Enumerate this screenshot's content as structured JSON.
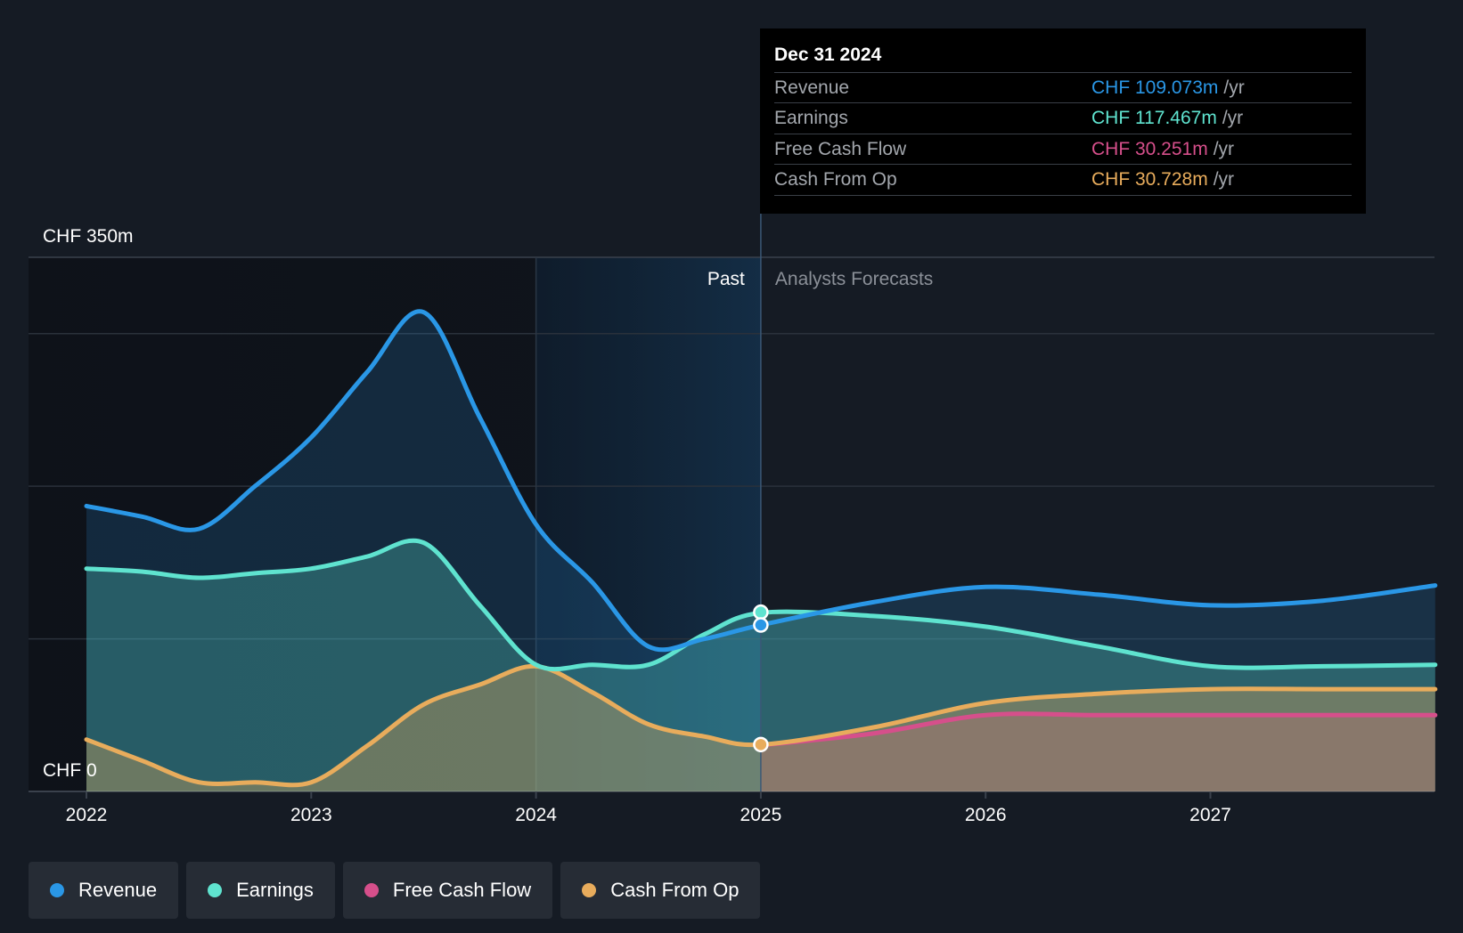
{
  "colors": {
    "revenue": "#2a97e6",
    "earnings": "#5fe3cf",
    "free_cash_flow": "#d64f8b",
    "cash_from_op": "#e8ac5c",
    "background": "#151b24"
  },
  "tooltip": {
    "date": "Dec 31 2024",
    "rows": [
      {
        "label": "Revenue",
        "value": "CHF 109.073m",
        "unit": "/yr"
      },
      {
        "label": "Earnings",
        "value": "CHF 117.467m",
        "unit": "/yr"
      },
      {
        "label": "Free Cash Flow",
        "value": "CHF 30.251m",
        "unit": "/yr"
      },
      {
        "label": "Cash From Op",
        "value": "CHF 30.728m",
        "unit": "/yr"
      }
    ]
  },
  "legend": {
    "items": [
      {
        "label": "Revenue",
        "icon": "dot-icon"
      },
      {
        "label": "Earnings",
        "icon": "dot-icon"
      },
      {
        "label": "Free Cash Flow",
        "icon": "dot-icon"
      },
      {
        "label": "Cash From Op",
        "icon": "dot-icon"
      }
    ]
  },
  "chart_data": {
    "type": "line",
    "title": "",
    "ylabel_top": "CHF 350m",
    "ylabel_bottom": "CHF 0",
    "ylim": [
      0,
      350
    ],
    "xlim": [
      2022,
      2028
    ],
    "x_ticks": [
      "2022",
      "2023",
      "2024",
      "2025",
      "2026",
      "2027"
    ],
    "x_tick_values": [
      2022,
      2023,
      2024,
      2025,
      2026,
      2027
    ],
    "past_label": "Past",
    "forecast_label": "Analysts Forecasts",
    "divider_x": 2025,
    "highlight_start": 2024,
    "series": [
      {
        "name": "Revenue",
        "key": "revenue",
        "points": [
          [
            2022,
            187
          ],
          [
            2022.25,
            180
          ],
          [
            2022.5,
            172
          ],
          [
            2022.75,
            200
          ],
          [
            2023,
            232
          ],
          [
            2023.25,
            275
          ],
          [
            2023.5,
            314
          ],
          [
            2023.75,
            245
          ],
          [
            2024,
            175
          ],
          [
            2024.25,
            137
          ],
          [
            2024.5,
            95
          ],
          [
            2024.75,
            100
          ],
          [
            2025,
            109
          ],
          [
            2025.5,
            124
          ],
          [
            2026,
            134
          ],
          [
            2026.5,
            129
          ],
          [
            2027,
            122
          ],
          [
            2027.5,
            125
          ],
          [
            2028,
            135
          ]
        ]
      },
      {
        "name": "Earnings",
        "key": "earnings",
        "points": [
          [
            2022,
            146
          ],
          [
            2022.25,
            144
          ],
          [
            2022.5,
            140
          ],
          [
            2022.75,
            143
          ],
          [
            2023,
            146
          ],
          [
            2023.25,
            154
          ],
          [
            2023.5,
            163
          ],
          [
            2023.75,
            122
          ],
          [
            2024,
            83
          ],
          [
            2024.25,
            83
          ],
          [
            2024.5,
            83
          ],
          [
            2024.75,
            103
          ],
          [
            2025,
            117
          ],
          [
            2025.5,
            115
          ],
          [
            2026,
            108
          ],
          [
            2026.5,
            95
          ],
          [
            2027,
            82
          ],
          [
            2027.5,
            82
          ],
          [
            2028,
            83
          ]
        ]
      },
      {
        "name": "Free Cash Flow",
        "key": "free_cash_flow",
        "points": [
          [
            2025,
            30.3
          ],
          [
            2025.5,
            38
          ],
          [
            2026,
            50
          ],
          [
            2026.5,
            50
          ],
          [
            2027,
            50
          ],
          [
            2027.5,
            50
          ],
          [
            2028,
            50
          ]
        ]
      },
      {
        "name": "Cash From Op",
        "key": "cash_from_op",
        "points": [
          [
            2022,
            34
          ],
          [
            2022.25,
            20
          ],
          [
            2022.5,
            6
          ],
          [
            2022.75,
            6
          ],
          [
            2023,
            6
          ],
          [
            2023.25,
            30
          ],
          [
            2023.5,
            57
          ],
          [
            2023.75,
            70
          ],
          [
            2024,
            82
          ],
          [
            2024.25,
            65
          ],
          [
            2024.5,
            44
          ],
          [
            2024.75,
            36
          ],
          [
            2025,
            30.7
          ],
          [
            2025.5,
            42
          ],
          [
            2026,
            58
          ],
          [
            2026.5,
            64
          ],
          [
            2027,
            67
          ],
          [
            2027.5,
            67
          ],
          [
            2028,
            67
          ]
        ]
      }
    ],
    "highlight_points": [
      {
        "series": "earnings",
        "x": 2025,
        "y": 117.467
      },
      {
        "series": "revenue",
        "x": 2025,
        "y": 109.073
      },
      {
        "series": "cash_from_op",
        "x": 2025,
        "y": 30.728
      }
    ]
  }
}
